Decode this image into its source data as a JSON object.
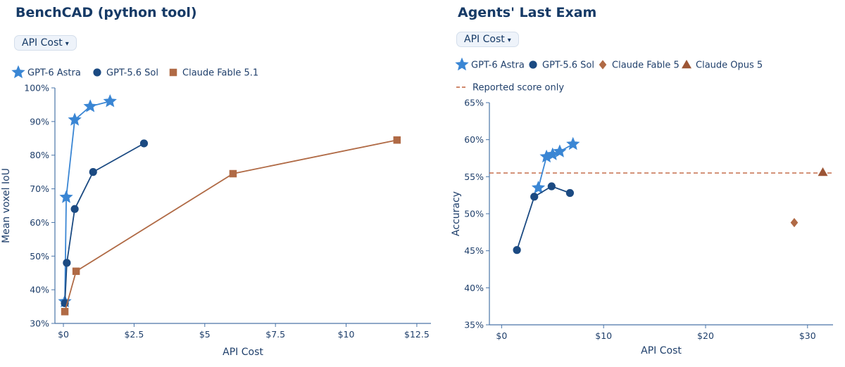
{
  "panels": [
    {
      "title": "BenchCAD (python tool)",
      "dropdown_label": "API Cost",
      "dropdown_caret": "▾"
    },
    {
      "title": "Agents' Last Exam",
      "dropdown_label": "API Cost",
      "dropdown_caret": "▾"
    }
  ],
  "chart_data": [
    {
      "type": "line",
      "title": "BenchCAD (python tool)",
      "xlabel": "API Cost",
      "ylabel": "Mean voxel IoU",
      "xlim": [
        -0.3,
        13.0
      ],
      "ylim": [
        30,
        100
      ],
      "x_ticks": [
        0,
        2.5,
        5,
        7.5,
        10,
        12.5
      ],
      "x_tick_labels": [
        "$0",
        "$2.5",
        "$5",
        "$7.5",
        "$10",
        "$12.5"
      ],
      "y_ticks": [
        30,
        40,
        50,
        60,
        70,
        80,
        90,
        100
      ],
      "y_tick_labels": [
        "30%",
        "40%",
        "50%",
        "60%",
        "70%",
        "80%",
        "90%",
        "100%"
      ],
      "grid": false,
      "legend_position": "top-left",
      "series": [
        {
          "name": "GPT-6 Astra",
          "marker": "star",
          "color": "#3a86d4",
          "x": [
            0.05,
            0.1,
            0.4,
            0.95,
            1.65
          ],
          "y": [
            36.5,
            67.5,
            90.5,
            94.5,
            96
          ]
        },
        {
          "name": "GPT-5.6 Sol",
          "marker": "circle",
          "color": "#1b4a82",
          "x": [
            0.05,
            0.12,
            0.4,
            1.05,
            2.85
          ],
          "y": [
            36,
            48,
            64,
            75,
            83.5
          ]
        },
        {
          "name": "Claude Fable 5.1",
          "marker": "square",
          "color": "#b06a45",
          "x": [
            0.05,
            0.45,
            6.0,
            11.8
          ],
          "y": [
            33.5,
            45.5,
            74.5,
            84.5
          ]
        }
      ]
    },
    {
      "type": "line",
      "title": "Agents' Last Exam",
      "xlabel": "API Cost",
      "ylabel": "Accuracy",
      "xlim": [
        -1.2,
        32.5
      ],
      "ylim": [
        35,
        65
      ],
      "x_ticks": [
        0,
        10,
        20,
        30
      ],
      "x_tick_labels": [
        "$0",
        "$10",
        "$20",
        "$30"
      ],
      "y_ticks": [
        35,
        40,
        45,
        50,
        55,
        60,
        65
      ],
      "y_tick_labels": [
        "35%",
        "40%",
        "45%",
        "50%",
        "55%",
        "60%",
        "65%"
      ],
      "grid": false,
      "legend_position": "top-left",
      "series": [
        {
          "name": "GPT-6 Astra",
          "marker": "star",
          "color": "#3a86d4",
          "x": [
            3.6,
            4.4,
            5.0,
            5.7,
            7.0
          ],
          "y": [
            53.5,
            57.7,
            58.0,
            58.4,
            59.4
          ]
        },
        {
          "name": "GPT-5.6 Sol",
          "marker": "circle",
          "color": "#1b4a82",
          "x": [
            1.5,
            3.2,
            4.9,
            6.7
          ],
          "y": [
            45.1,
            52.3,
            53.7,
            52.8
          ]
        },
        {
          "name": "Claude Fable 5",
          "marker": "diamond",
          "color": "#b06a45",
          "x": [
            28.7
          ],
          "y": [
            48.8
          ]
        },
        {
          "name": "Claude Opus 5",
          "marker": "triangle",
          "color": "#9c5535",
          "x": [
            31.5
          ],
          "y": [
            55.6
          ]
        }
      ],
      "reference_lines": [
        {
          "name": "Reported score only",
          "y": 55.5,
          "style": "dashed",
          "color": "#c0603c"
        }
      ]
    }
  ]
}
